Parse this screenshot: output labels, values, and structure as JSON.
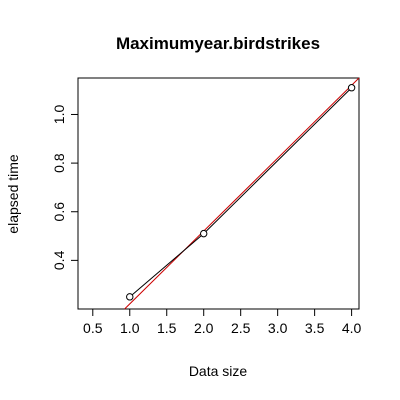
{
  "chart_data": {
    "type": "scatter",
    "title": "Maximumyear.birdstrikes",
    "xlabel": "Data size",
    "ylabel": "elapsed time",
    "xlim": [
      0.3,
      4.1
    ],
    "ylim": [
      0.2,
      1.15
    ],
    "x_ticks": [
      "0.5",
      "1.0",
      "1.5",
      "2.0",
      "2.5",
      "3.0",
      "3.5",
      "4.0"
    ],
    "y_ticks": [
      "0.4",
      "0.6",
      "0.8",
      "1.0"
    ],
    "series": [
      {
        "x": [
          1,
          2,
          4
        ],
        "y": [
          0.25,
          0.51,
          1.11
        ],
        "connected": true,
        "point_style": "open-circle",
        "color": "#000000"
      }
    ],
    "fit_line": {
      "color": "#cc0000",
      "start": [
        0.93,
        0.2
      ],
      "end": [
        4.1,
        1.15
      ]
    },
    "grid": false,
    "legend": "none"
  }
}
